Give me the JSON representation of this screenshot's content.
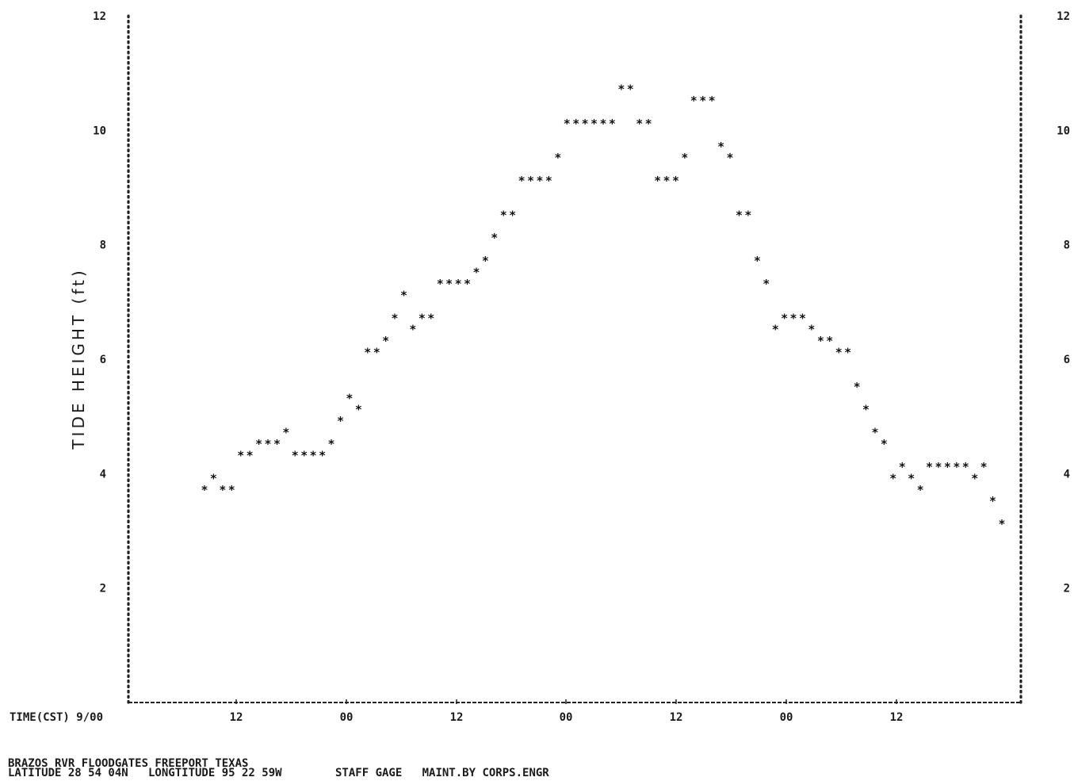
{
  "chart_data": {
    "type": "scatter",
    "title": "",
    "ylabel": "TIDE HEIGHT (ft)",
    "xlabel": "TIME(CST) 9/00",
    "ylim": [
      0,
      12
    ],
    "yticks": [
      "2",
      "4",
      "6",
      "8",
      "10",
      "12"
    ],
    "yticks_right": [
      "2",
      "4",
      "6",
      "8",
      "10",
      "12"
    ],
    "xticks": [
      "12",
      "00",
      "12",
      "00",
      "12",
      "00",
      "12"
    ],
    "marker": "*",
    "grid": false,
    "y": [
      3.8,
      4.0,
      3.8,
      3.8,
      4.4,
      4.4,
      4.6,
      4.6,
      4.6,
      4.8,
      4.4,
      4.4,
      4.4,
      4.4,
      4.6,
      5.0,
      5.4,
      5.2,
      6.2,
      6.2,
      6.4,
      6.8,
      7.2,
      6.6,
      6.8,
      6.8,
      7.4,
      7.4,
      7.4,
      7.4,
      7.6,
      7.8,
      8.2,
      8.6,
      8.6,
      9.2,
      9.2,
      9.2,
      9.2,
      9.6,
      10.2,
      10.2,
      10.2,
      10.2,
      10.2,
      10.2,
      10.8,
      10.8,
      10.2,
      10.2,
      9.2,
      9.2,
      9.2,
      9.6,
      10.6,
      10.6,
      10.6,
      9.8,
      9.6,
      8.6,
      8.6,
      7.8,
      7.4,
      6.6,
      6.8,
      6.8,
      6.8,
      6.6,
      6.4,
      6.4,
      6.2,
      6.2,
      5.6,
      5.2,
      4.8,
      4.6,
      4.0,
      4.2,
      4.0,
      3.8,
      4.2,
      4.2,
      4.2,
      4.2,
      4.2,
      4.0,
      4.2,
      3.6,
      3.2
    ]
  },
  "footer": {
    "line1": "BRAZOS RVR FLOODGATES FREEPORT TEXAS",
    "line2": "LATITUDE 28 54 04N   LONGTITUDE 95 22 59W        STAFF GAGE   MAINT.BY CORPS.ENGR"
  }
}
